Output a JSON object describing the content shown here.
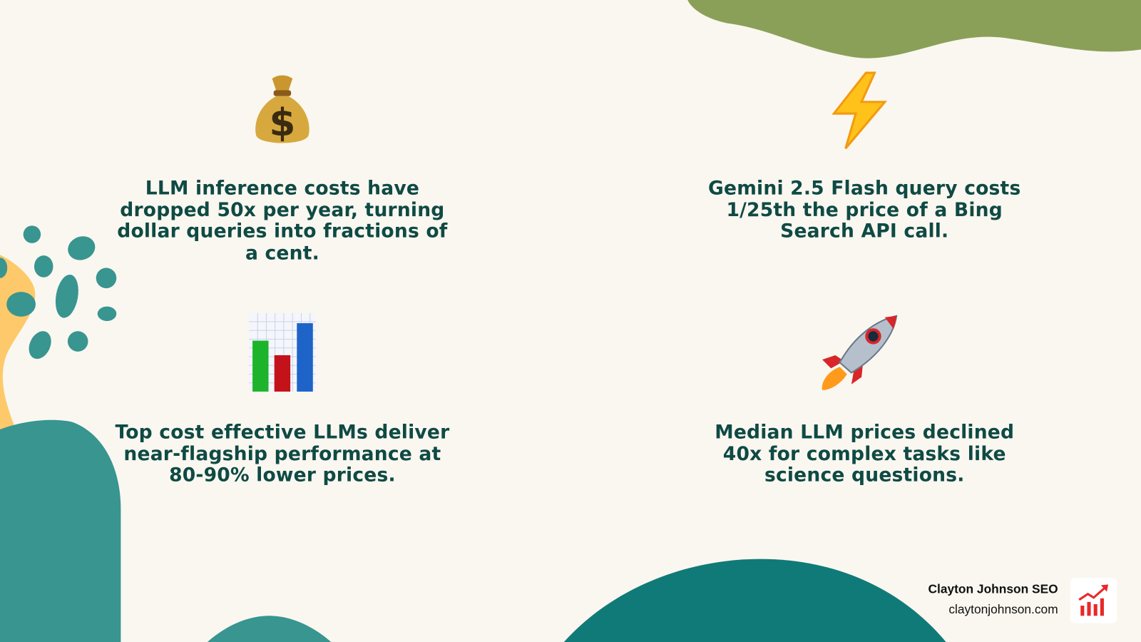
{
  "colors": {
    "background": "#faf7f0",
    "text": "#0f4a44",
    "teal": "#389590",
    "dark_teal": "#107a78",
    "olive": "#8aa058",
    "yellow": "#fec96a",
    "logo_red": "#e8282a"
  },
  "stats": [
    {
      "icon": "money-bag-icon",
      "text": "LLM inference costs have dropped 50x per year, turning dollar queries into fractions of a cent."
    },
    {
      "icon": "lightning-icon",
      "text": "Gemini 2.5 Flash query costs 1/25th the price of a Bing Search API call."
    },
    {
      "icon": "bar-chart-icon",
      "text": "Top cost effective LLMs deliver near-flagship performance at 80-90% lower prices."
    },
    {
      "icon": "rocket-icon",
      "text": "Median LLM prices declined 40x for complex tasks like science questions."
    }
  ],
  "brand": {
    "name": "Clayton Johnson SEO",
    "url": "claytonjohnson.com",
    "logo": "growth-chart-icon"
  }
}
